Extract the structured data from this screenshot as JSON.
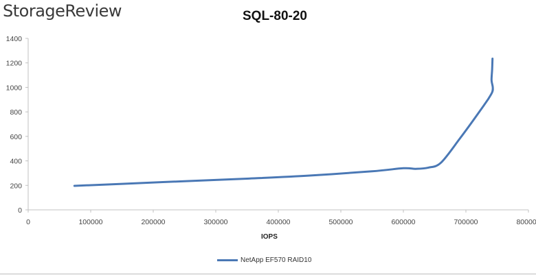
{
  "brand": "StorageReview",
  "colors": {
    "series": "#4a78b5",
    "axis": "#c0c0c0"
  },
  "chart_data": {
    "type": "line",
    "title": "SQL-80-20",
    "xlabel": "IOPS",
    "ylabel": "",
    "xlim": [
      0,
      800000
    ],
    "ylim": [
      0,
      1400
    ],
    "x_ticks": [
      0,
      100000,
      200000,
      300000,
      400000,
      500000,
      600000,
      700000,
      800000
    ],
    "x_tick_labels": [
      "0",
      "100000",
      "200000",
      "300000",
      "400000",
      "500000",
      "600000",
      "700000",
      "800000"
    ],
    "y_ticks": [
      0,
      200,
      400,
      600,
      800,
      1000,
      1200,
      1400
    ],
    "y_tick_labels": [
      "0",
      "200",
      "400",
      "600",
      "800",
      "1000",
      "1200",
      "1400"
    ],
    "grid": false,
    "legend_position": "bottom",
    "series": [
      {
        "name": "NetApp EF570 RAID10",
        "x": [
          74000,
          150000,
          250000,
          350000,
          450000,
          550000,
          600000,
          620000,
          640000,
          660000,
          690000,
          720000,
          735000,
          742000,
          743000,
          741000,
          742000,
          742500
        ],
        "y": [
          196,
          212,
          234,
          255,
          280,
          315,
          340,
          335,
          345,
          385,
          580,
          790,
          900,
          960,
          1000,
          1060,
          1150,
          1235
        ]
      }
    ]
  }
}
